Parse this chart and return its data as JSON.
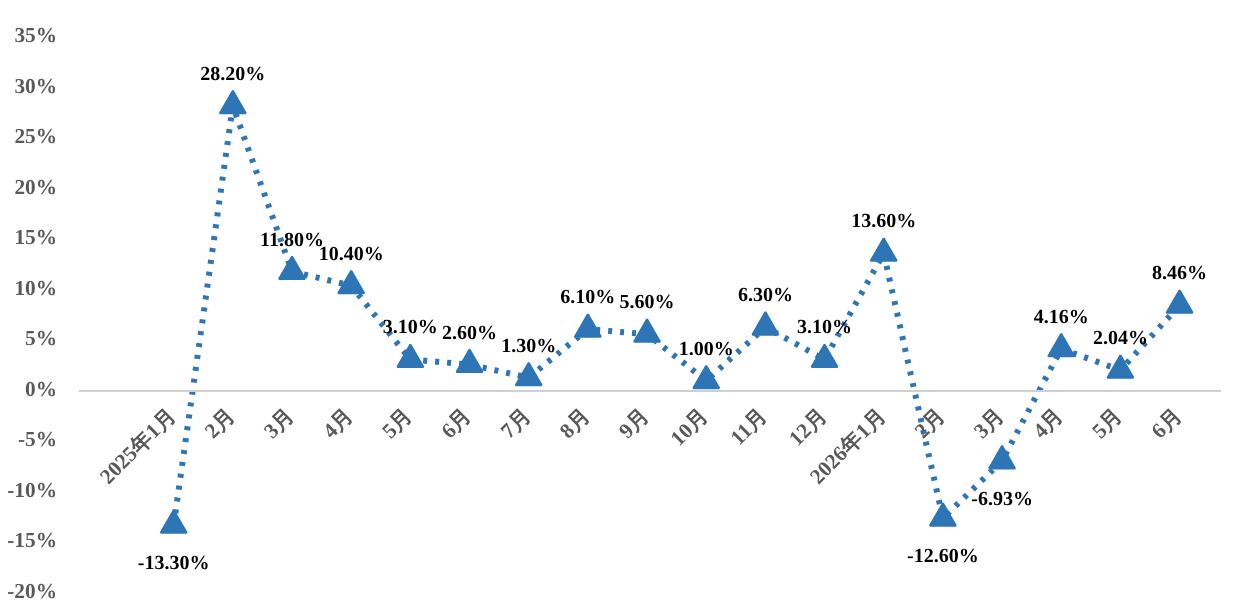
{
  "chart_data": {
    "type": "line",
    "categories": [
      "2025年1月",
      "2月",
      "3月",
      "4月",
      "5月",
      "6月",
      "7月",
      "8月",
      "9月",
      "10月",
      "11月",
      "12月",
      "2026年1月",
      "2月",
      "3月",
      "4月",
      "5月",
      "6月"
    ],
    "series": [
      {
        "color": "#2e75b6",
        "values": [
          -13.3,
          28.2,
          11.8,
          10.4,
          3.1,
          2.6,
          1.3,
          6.1,
          5.6,
          1.0,
          6.3,
          3.1,
          13.6,
          -12.6,
          -6.93,
          4.16,
          2.04,
          8.46
        ],
        "value_labels": [
          "-13.30%",
          "28.20%",
          "11.80%",
          "10.40%",
          "3.10%",
          "2.60%",
          "1.30%",
          "6.10%",
          "5.60%",
          "1.00%",
          "6.30%",
          "3.10%",
          "13.60%",
          "-12.60%",
          "-6.93%",
          "4.16%",
          "2.04%",
          "8.46%"
        ]
      }
    ],
    "ylim": [
      -20,
      35
    ],
    "yticks": [
      {
        "value": -20,
        "label": "-20%"
      },
      {
        "value": -15,
        "label": "-15%"
      },
      {
        "value": -10,
        "label": "-10%"
      },
      {
        "value": -5,
        "label": "-5%"
      },
      {
        "value": 0,
        "label": "0%"
      },
      {
        "value": 5,
        "label": "5%"
      },
      {
        "value": 10,
        "label": "10%"
      },
      {
        "value": 15,
        "label": "15%"
      },
      {
        "value": 20,
        "label": "20%"
      },
      {
        "value": 25,
        "label": "25%"
      },
      {
        "value": 30,
        "label": "30%"
      },
      {
        "value": 35,
        "label": "35%"
      }
    ],
    "grid": false,
    "marker": "triangle",
    "line_style": "dotted"
  }
}
